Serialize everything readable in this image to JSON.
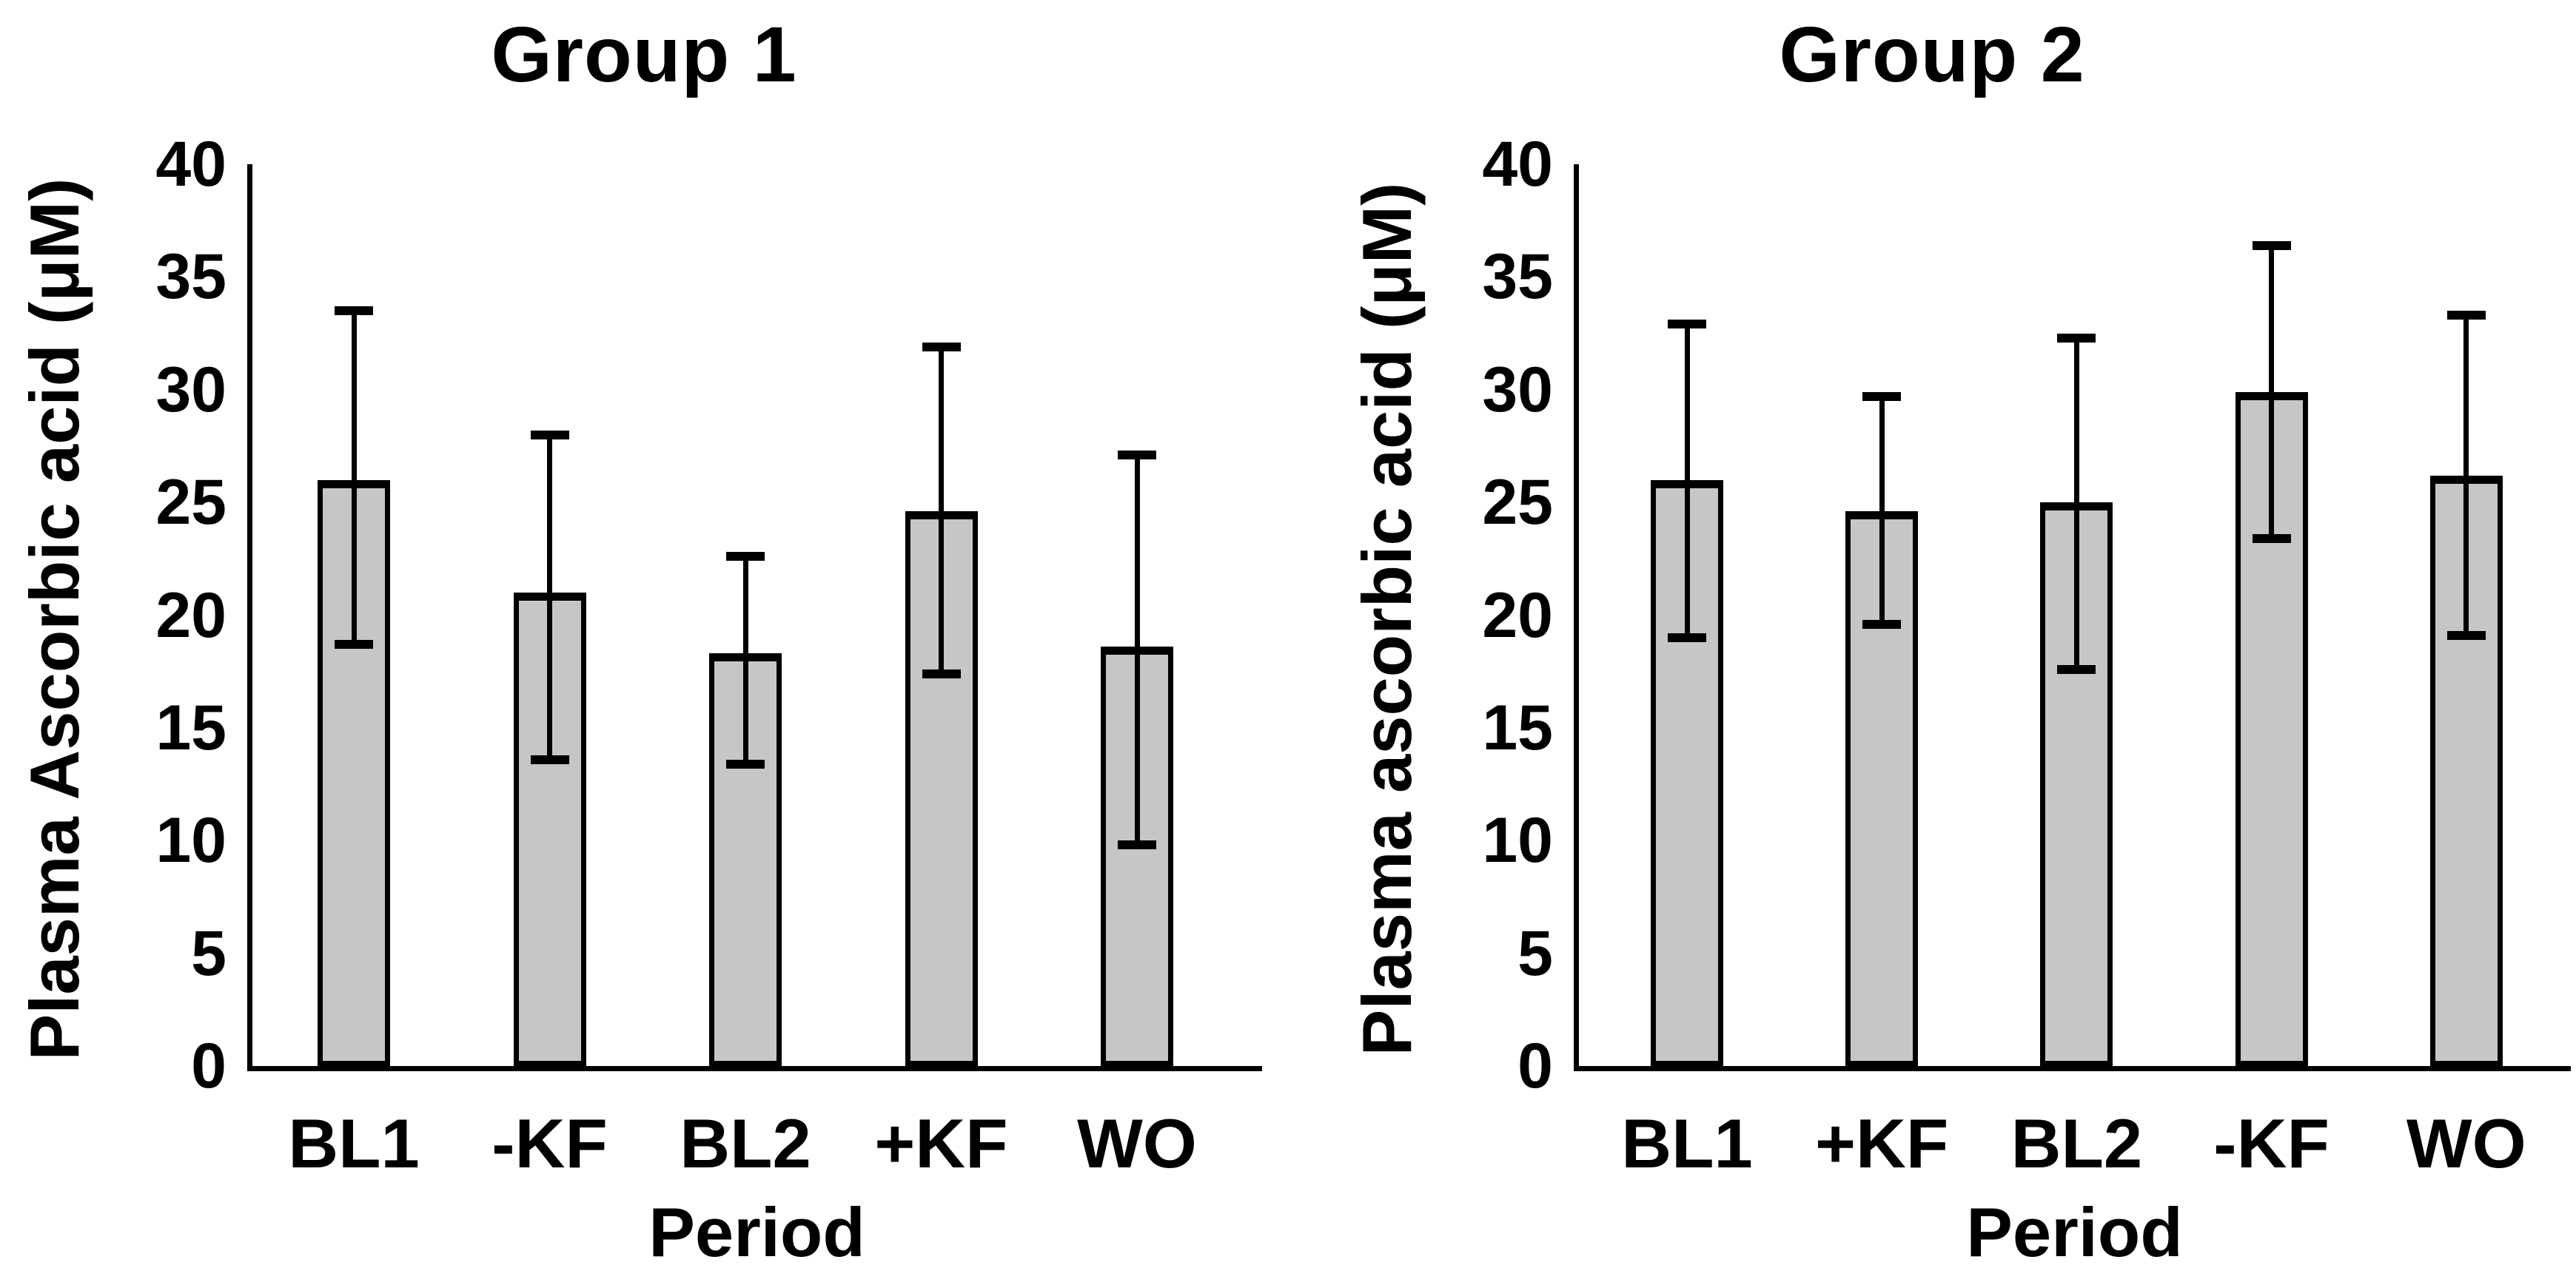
{
  "chart_data": [
    {
      "type": "bar",
      "title": "Group 1",
      "xlabel": "Period",
      "ylabel": "Plasma Ascorbic acid (μM)",
      "ylim": [
        0,
        40
      ],
      "yticks": [
        0,
        5,
        10,
        15,
        20,
        25,
        30,
        35,
        40
      ],
      "grid": false,
      "legend": null,
      "bar_fill_color": "#c6c6c6",
      "bar_border_color": "#000000",
      "categories": [
        "BL1",
        "-KF",
        "BL2",
        "+KF",
        "WO"
      ],
      "values": [
        26.0,
        21.0,
        18.3,
        24.6,
        18.6
      ],
      "error_upper": [
        33.5,
        28.0,
        22.6,
        31.9,
        27.1
      ],
      "error_lower": [
        18.7,
        13.6,
        13.4,
        17.4,
        9.8
      ]
    },
    {
      "type": "bar",
      "title": "Group 2",
      "xlabel": "Period",
      "ylabel": "Plasma ascorbic acid (μM)",
      "ylim": [
        0,
        40
      ],
      "yticks": [
        0,
        5,
        10,
        15,
        20,
        25,
        30,
        35,
        40
      ],
      "grid": false,
      "legend": null,
      "bar_fill_color": "#c6c6c6",
      "bar_border_color": "#000000",
      "categories": [
        "BL1",
        "+KF",
        "BL2",
        "-KF",
        "WO"
      ],
      "values": [
        26.0,
        24.6,
        25.0,
        29.9,
        26.2
      ],
      "error_upper": [
        32.9,
        29.7,
        32.3,
        36.4,
        33.3
      ],
      "error_lower": [
        19.0,
        19.6,
        17.6,
        23.4,
        19.1
      ]
    }
  ]
}
